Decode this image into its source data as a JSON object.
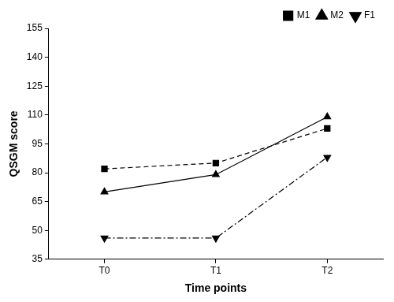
{
  "chart_data": {
    "type": "line",
    "x_label": "Time points",
    "y_label": "QSGM score",
    "categories": [
      "T0",
      "T1",
      "T2"
    ],
    "series": [
      {
        "name": "M1",
        "color": "#000000",
        "marker": "square",
        "line_style": "dashed",
        "values": [
          82,
          85,
          103
        ]
      },
      {
        "name": "M2",
        "color": "#000000",
        "marker": "triangle",
        "line_style": "solid",
        "values": [
          70,
          79,
          109
        ]
      },
      {
        "name": "F1",
        "color": "#000000",
        "marker": "triangle-down",
        "line_style": "dashdot",
        "values": [
          46,
          46,
          88
        ]
      }
    ],
    "ylim": [
      35,
      155
    ],
    "yticks": [
      35,
      50,
      65,
      80,
      95,
      110,
      125,
      140,
      155
    ],
    "grid": false,
    "legend": "upper right"
  }
}
